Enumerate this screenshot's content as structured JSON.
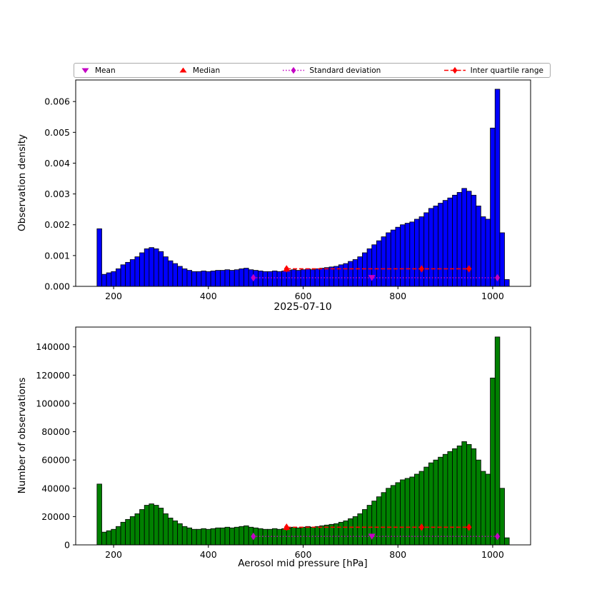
{
  "figure": {
    "colors": {
      "top_bar": "#0000ff",
      "bottom_bar": "#008000",
      "edge": "#000000",
      "mean": "#c400c4",
      "median": "#ff0000",
      "std": "#c400c4",
      "iqr": "#ff0000"
    }
  },
  "legend": {
    "items": [
      {
        "label": "Mean",
        "marker": "triangle-down",
        "color": "#c400c4",
        "line": "none"
      },
      {
        "label": "Median",
        "marker": "triangle-up",
        "color": "#ff0000",
        "line": "none"
      },
      {
        "label": "Standard deviation",
        "marker": "thin-diamond",
        "color": "#c400c4",
        "line": "dotted"
      },
      {
        "label": "Inter quartile range",
        "marker": "thin-diamond",
        "color": "#ff0000",
        "line": "dashed"
      }
    ]
  },
  "chart_data": [
    {
      "type": "bar",
      "subtype": "histogram",
      "title": "",
      "ylabel": "Observation density",
      "xlabel": "",
      "bar_color": "#0000ff",
      "bin_start": 165,
      "bin_width": 10,
      "xlim": [
        120,
        1080
      ],
      "ylim": [
        0,
        0.0067
      ],
      "grid": false,
      "legend_position": "top",
      "values": [
        0.00187,
        0.00039,
        0.00044,
        0.00048,
        0.00057,
        0.0007,
        0.00078,
        0.00087,
        0.00096,
        0.00109,
        0.00122,
        0.00126,
        0.00122,
        0.00113,
        0.00096,
        0.00083,
        0.00074,
        0.00065,
        0.00057,
        0.00052,
        0.00048,
        0.00048,
        0.0005,
        0.00048,
        0.0005,
        0.00052,
        0.00052,
        0.00054,
        0.00052,
        0.00054,
        0.00057,
        0.00059,
        0.00054,
        0.00052,
        0.0005,
        0.00048,
        0.00048,
        0.0005,
        0.00048,
        0.0005,
        0.00052,
        0.00054,
        0.00052,
        0.00054,
        0.00057,
        0.00054,
        0.00057,
        0.00059,
        0.00061,
        0.00063,
        0.00065,
        0.0007,
        0.00074,
        0.00081,
        0.00087,
        0.00096,
        0.00109,
        0.00122,
        0.00135,
        0.00148,
        0.00161,
        0.00174,
        0.00183,
        0.00192,
        0.002,
        0.00205,
        0.00209,
        0.00218,
        0.00226,
        0.00239,
        0.00253,
        0.00261,
        0.0027,
        0.00279,
        0.00287,
        0.00296,
        0.00305,
        0.00318,
        0.00309,
        0.00296,
        0.00261,
        0.00226,
        0.00218,
        0.00514,
        0.0064,
        0.00174,
        0.00022
      ],
      "x_ticks": [
        {
          "v": 200,
          "label": "200"
        },
        {
          "v": 400,
          "label": "400"
        },
        {
          "v": 600,
          "label": "600"
        },
        {
          "v": 800,
          "label": "800"
        },
        {
          "v": 1000,
          "label": "1000"
        }
      ],
      "y_ticks": [
        {
          "v": 0,
          "label": "0.000"
        },
        {
          "v": 0.001,
          "label": "0.001"
        },
        {
          "v": 0.002,
          "label": "0.002"
        },
        {
          "v": 0.003,
          "label": "0.003"
        },
        {
          "v": 0.004,
          "label": "0.004"
        },
        {
          "v": 0.005,
          "label": "0.005"
        },
        {
          "v": 0.006,
          "label": "0.006"
        }
      ],
      "markers": {
        "mean": {
          "x": 745,
          "y": 0.00028
        },
        "median": {
          "x": 565,
          "y": 0.00057
        },
        "std_range": {
          "x_start": 495,
          "x_end": 1010,
          "y": 0.00028
        },
        "iqr_range": {
          "x_start": 565,
          "x_mid": 850,
          "x_end": 950,
          "y": 0.00057
        }
      }
    },
    {
      "type": "bar",
      "subtype": "histogram",
      "title": "2025-07-10",
      "ylabel": "Number of observations",
      "xlabel": "Aerosol mid pressure [hPa]",
      "bar_color": "#008000",
      "bin_start": 165,
      "bin_width": 10,
      "xlim": [
        120,
        1080
      ],
      "ylim": [
        0,
        154000
      ],
      "grid": false,
      "values": [
        43000,
        9000,
        10000,
        11000,
        13000,
        16000,
        18000,
        20000,
        22000,
        25000,
        28000,
        29000,
        28000,
        26000,
        22000,
        19000,
        17000,
        15000,
        13000,
        12000,
        11000,
        11000,
        11500,
        11000,
        11500,
        12000,
        12000,
        12500,
        12000,
        12500,
        13000,
        13500,
        12500,
        12000,
        11500,
        11000,
        11000,
        11500,
        11000,
        11500,
        12000,
        12500,
        12000,
        12500,
        13000,
        12500,
        13000,
        13500,
        14000,
        14500,
        15000,
        16000,
        17000,
        18500,
        20000,
        22000,
        25000,
        28000,
        31000,
        34000,
        37000,
        40000,
        42000,
        44000,
        46000,
        47000,
        48000,
        50000,
        52000,
        55000,
        58000,
        60000,
        62000,
        64000,
        66000,
        68000,
        70000,
        73000,
        71000,
        68000,
        60000,
        52000,
        50000,
        118000,
        147000,
        40000,
        5000
      ],
      "x_ticks": [
        {
          "v": 200,
          "label": "200"
        },
        {
          "v": 400,
          "label": "400"
        },
        {
          "v": 600,
          "label": "600"
        },
        {
          "v": 800,
          "label": "800"
        },
        {
          "v": 1000,
          "label": "1000"
        }
      ],
      "y_ticks": [
        {
          "v": 0,
          "label": "0"
        },
        {
          "v": 20000,
          "label": "20000"
        },
        {
          "v": 40000,
          "label": "40000"
        },
        {
          "v": 60000,
          "label": "60000"
        },
        {
          "v": 80000,
          "label": "80000"
        },
        {
          "v": 100000,
          "label": "100000"
        },
        {
          "v": 120000,
          "label": "120000"
        },
        {
          "v": 140000,
          "label": "140000"
        }
      ],
      "markers": {
        "mean": {
          "x": 745,
          "y": 6000
        },
        "median": {
          "x": 565,
          "y": 12500
        },
        "std_range": {
          "x_start": 495,
          "x_end": 1010,
          "y": 6000
        },
        "iqr_range": {
          "x_start": 565,
          "x_mid": 850,
          "x_end": 950,
          "y": 12500
        }
      }
    }
  ]
}
